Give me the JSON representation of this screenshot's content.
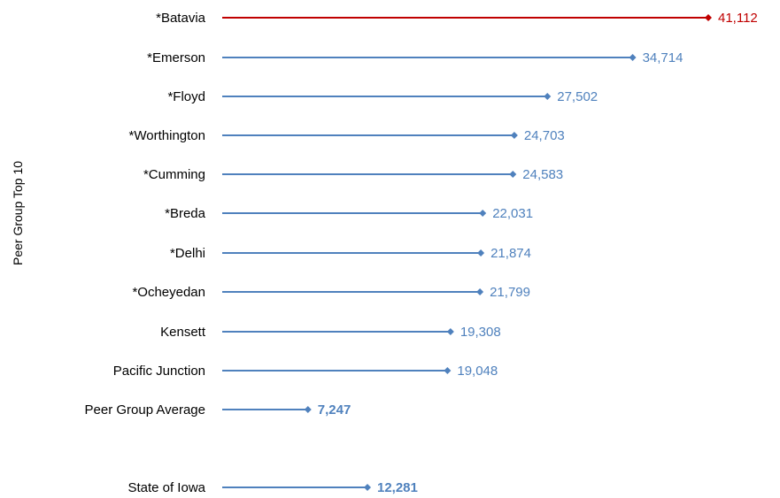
{
  "chart_data": {
    "type": "bar",
    "orientation": "horizontal",
    "style": "lollipop",
    "ylabel": "Peer Group Top 10",
    "xlim": [
      0,
      41112
    ],
    "grid": false,
    "legend": "none",
    "categories": [
      "*Batavia",
      "*Emerson",
      "*Floyd",
      "*Worthington",
      "*Cumming",
      "*Breda",
      "*Delhi",
      "*Ocheyedan",
      "Kensett",
      "Pacific Junction",
      "Peer Group Average",
      "State of Iowa"
    ],
    "values": [
      41112,
      34714,
      27502,
      24703,
      24583,
      22031,
      21874,
      21799,
      19308,
      19048,
      7247,
      12281
    ],
    "value_labels": [
      "41,112",
      "34,714",
      "27,502",
      "24,703",
      "24,583",
      "22,031",
      "21,874",
      "21,799",
      "19,308",
      "19,048",
      "7,247",
      "12,281"
    ],
    "bold": [
      false,
      false,
      false,
      false,
      false,
      false,
      false,
      false,
      false,
      false,
      true,
      true
    ],
    "colors": {
      "default": "#4F81BD",
      "highlight": "#C00000"
    },
    "highlight_index": 0
  }
}
